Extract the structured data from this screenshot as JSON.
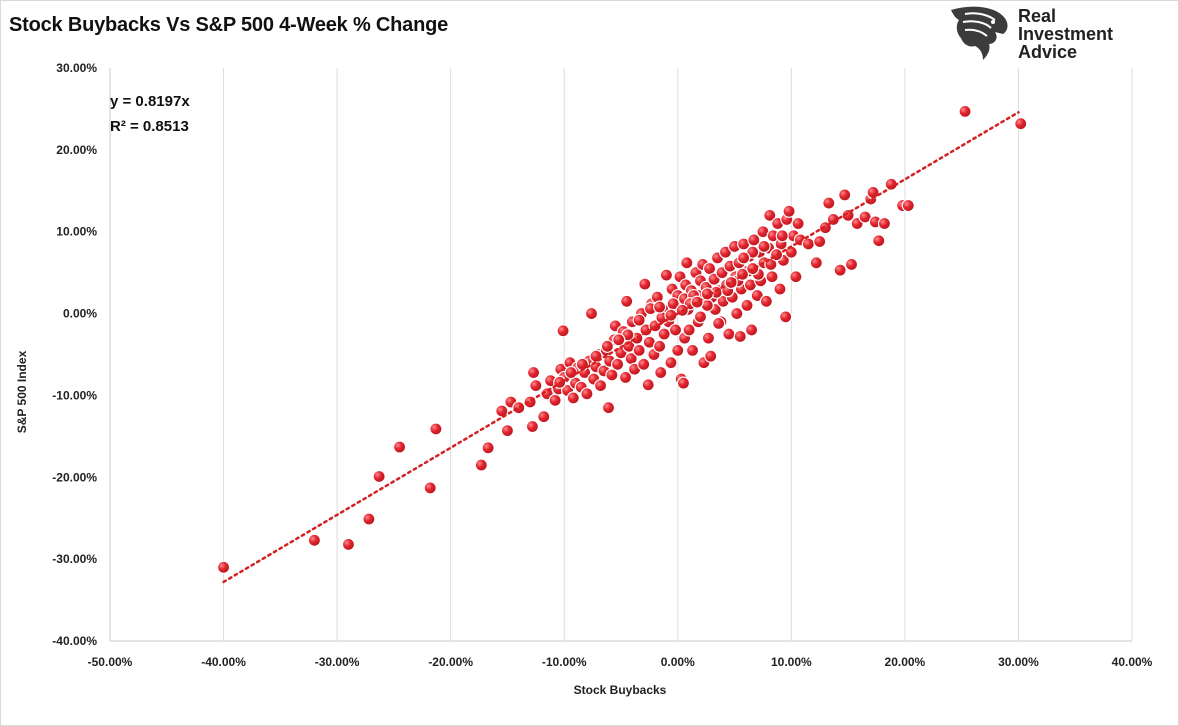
{
  "chart_data": {
    "type": "scatter",
    "title": "Stock Buybacks Vs S&P 500 4-Week % Change",
    "xlabel": "Stock Buybacks",
    "ylabel": "S&P 500 Index",
    "xlim": [
      -0.5,
      0.4
    ],
    "ylim": [
      -0.4,
      0.3
    ],
    "x_ticks": [
      -0.5,
      -0.4,
      -0.3,
      -0.2,
      -0.1,
      0,
      0.1,
      0.2,
      0.3,
      0.4
    ],
    "x_tick_labels": [
      "-50.00%",
      "-40.00%",
      "-30.00%",
      "-20.00%",
      "-10.00%",
      "0.00%",
      "10.00%",
      "20.00%",
      "30.00%",
      "40.00%"
    ],
    "y_ticks": [
      0.3,
      0.2,
      0.1,
      0,
      -0.1,
      -0.2,
      -0.3,
      -0.4
    ],
    "y_tick_labels": [
      "30.00%",
      "20.00%",
      "10.00%",
      "0.00%",
      "-10.00%",
      "-20.00%",
      "-30.00%",
      "-40.00%"
    ],
    "grid": "vertical",
    "marker_color": "#e0202c",
    "trendline": {
      "type": "linear-through-origin",
      "slope": 0.8197,
      "x_range": [
        -0.4,
        0.3
      ],
      "color": "#d42020",
      "style": "dotted"
    },
    "annotations": [
      "y = 0.8197x",
      "R² = 0.8513"
    ],
    "series": [
      {
        "points": [
          [
            -0.4,
            -0.31
          ],
          [
            -0.32,
            -0.277
          ],
          [
            -0.29,
            -0.282
          ],
          [
            -0.272,
            -0.251
          ],
          [
            -0.263,
            -0.199
          ],
          [
            -0.245,
            -0.163
          ],
          [
            -0.218,
            -0.213
          ],
          [
            -0.213,
            -0.141
          ],
          [
            -0.173,
            -0.185
          ],
          [
            -0.167,
            -0.164
          ],
          [
            -0.155,
            -0.119
          ],
          [
            -0.15,
            -0.143
          ],
          [
            -0.147,
            -0.108
          ],
          [
            -0.14,
            -0.115
          ],
          [
            -0.13,
            -0.108
          ],
          [
            -0.128,
            -0.138
          ],
          [
            -0.127,
            -0.072
          ],
          [
            -0.125,
            -0.088
          ],
          [
            -0.118,
            -0.126
          ],
          [
            -0.115,
            -0.098
          ],
          [
            -0.112,
            -0.082
          ],
          [
            -0.108,
            -0.106
          ],
          [
            -0.105,
            -0.092
          ],
          [
            -0.103,
            -0.068
          ],
          [
            -0.1,
            -0.078
          ],
          [
            -0.101,
            -0.021
          ],
          [
            -0.097,
            -0.094
          ],
          [
            -0.095,
            -0.06
          ],
          [
            -0.092,
            -0.103
          ],
          [
            -0.09,
            -0.085
          ],
          [
            -0.088,
            -0.066
          ],
          [
            -0.085,
            -0.09
          ],
          [
            -0.082,
            -0.072
          ],
          [
            -0.08,
            -0.098
          ],
          [
            -0.078,
            -0.058
          ],
          [
            -0.076,
            0.0
          ],
          [
            -0.074,
            -0.08
          ],
          [
            -0.072,
            -0.065
          ],
          [
            -0.07,
            -0.05
          ],
          [
            -0.068,
            -0.088
          ],
          [
            -0.065,
            -0.07
          ],
          [
            -0.063,
            -0.045
          ],
          [
            -0.061,
            -0.115
          ],
          [
            -0.06,
            -0.058
          ],
          [
            -0.058,
            -0.075
          ],
          [
            -0.056,
            -0.032
          ],
          [
            -0.055,
            -0.015
          ],
          [
            -0.053,
            -0.062
          ],
          [
            -0.05,
            -0.048
          ],
          [
            -0.048,
            -0.022
          ],
          [
            -0.046,
            -0.078
          ],
          [
            -0.045,
            0.015
          ],
          [
            -0.043,
            -0.04
          ],
          [
            -0.041,
            -0.055
          ],
          [
            -0.04,
            -0.01
          ],
          [
            -0.038,
            -0.068
          ],
          [
            -0.036,
            -0.03
          ],
          [
            -0.034,
            -0.045
          ],
          [
            -0.032,
            0.0
          ],
          [
            -0.03,
            -0.062
          ],
          [
            -0.029,
            0.036
          ],
          [
            -0.028,
            -0.02
          ],
          [
            -0.026,
            -0.087
          ],
          [
            -0.025,
            -0.035
          ],
          [
            -0.023,
            0.012
          ],
          [
            -0.021,
            -0.05
          ],
          [
            -0.02,
            -0.015
          ],
          [
            -0.018,
            0.02
          ],
          [
            -0.016,
            -0.04
          ],
          [
            -0.015,
            -0.072
          ],
          [
            -0.013,
            0.005
          ],
          [
            -0.012,
            -0.025
          ],
          [
            -0.01,
            0.047
          ],
          [
            -0.008,
            -0.01
          ],
          [
            -0.006,
            -0.06
          ],
          [
            -0.005,
            0.03
          ],
          [
            -0.003,
            0.008
          ],
          [
            -0.002,
            -0.02
          ],
          [
            0.0,
            -0.045
          ],
          [
            0.0,
            0.022
          ],
          [
            0.002,
            0.045
          ],
          [
            0.003,
            -0.08
          ],
          [
            0.004,
            0.01
          ],
          [
            0.005,
            -0.085
          ],
          [
            0.006,
            -0.03
          ],
          [
            0.007,
            0.035
          ],
          [
            0.008,
            0.062
          ],
          [
            0.009,
            0.005
          ],
          [
            0.01,
            -0.02
          ],
          [
            0.012,
            0.028
          ],
          [
            0.013,
            -0.045
          ],
          [
            0.015,
            0.015
          ],
          [
            0.016,
            0.05
          ],
          [
            0.018,
            -0.01
          ],
          [
            0.019,
            0.022
          ],
          [
            0.02,
            0.04
          ],
          [
            0.022,
            0.06
          ],
          [
            0.023,
            -0.06
          ],
          [
            0.024,
            0.012
          ],
          [
            0.025,
            0.032
          ],
          [
            0.027,
            -0.03
          ],
          [
            0.028,
            0.055
          ],
          [
            0.029,
            -0.052
          ],
          [
            0.03,
            0.02
          ],
          [
            0.032,
            0.042
          ],
          [
            0.033,
            0.005
          ],
          [
            0.035,
            0.068
          ],
          [
            0.036,
            0.028
          ],
          [
            0.038,
            -0.01
          ],
          [
            0.039,
            0.05
          ],
          [
            0.04,
            0.015
          ],
          [
            0.042,
            0.075
          ],
          [
            0.043,
            0.035
          ],
          [
            0.045,
            -0.025
          ],
          [
            0.046,
            0.058
          ],
          [
            0.048,
            0.02
          ],
          [
            0.05,
            0.082
          ],
          [
            0.051,
            0.045
          ],
          [
            0.052,
            0.0
          ],
          [
            0.054,
            0.062
          ],
          [
            0.055,
            -0.028
          ],
          [
            0.056,
            0.03
          ],
          [
            0.058,
            0.085
          ],
          [
            0.06,
            0.05
          ],
          [
            0.061,
            0.01
          ],
          [
            0.063,
            0.07
          ],
          [
            0.064,
            0.035
          ],
          [
            0.065,
            -0.02
          ],
          [
            0.067,
            0.09
          ],
          [
            0.068,
            0.055
          ],
          [
            0.07,
            0.022
          ],
          [
            0.072,
            0.075
          ],
          [
            0.073,
            0.04
          ],
          [
            0.075,
            0.1
          ],
          [
            0.076,
            0.062
          ],
          [
            0.078,
            0.015
          ],
          [
            0.08,
            0.08
          ],
          [
            0.081,
            0.12
          ],
          [
            0.083,
            0.045
          ],
          [
            0.084,
            0.095
          ],
          [
            0.086,
            0.07
          ],
          [
            0.088,
            0.11
          ],
          [
            0.09,
            0.03
          ],
          [
            0.091,
            0.085
          ],
          [
            0.093,
            0.065
          ],
          [
            0.095,
            -0.004
          ],
          [
            0.096,
            0.115
          ],
          [
            0.098,
            0.125
          ],
          [
            0.1,
            0.075
          ],
          [
            0.102,
            0.095
          ],
          [
            0.104,
            0.045
          ],
          [
            0.106,
            0.11
          ],
          [
            0.108,
            0.09
          ],
          [
            0.115,
            0.085
          ],
          [
            0.122,
            0.062
          ],
          [
            0.125,
            0.088
          ],
          [
            0.13,
            0.105
          ],
          [
            0.133,
            0.135
          ],
          [
            0.137,
            0.115
          ],
          [
            0.143,
            0.053
          ],
          [
            0.147,
            0.145
          ],
          [
            0.15,
            0.12
          ],
          [
            0.153,
            0.06
          ],
          [
            0.158,
            0.11
          ],
          [
            0.165,
            0.118
          ],
          [
            0.17,
            0.14
          ],
          [
            0.172,
            0.148
          ],
          [
            0.174,
            0.112
          ],
          [
            0.177,
            0.089
          ],
          [
            0.182,
            0.11
          ],
          [
            0.188,
            0.158
          ],
          [
            0.198,
            0.132
          ],
          [
            0.203,
            0.132
          ],
          [
            0.253,
            0.247
          ],
          [
            0.302,
            0.232
          ],
          [
            -0.034,
            -0.008
          ],
          [
            -0.024,
            0.006
          ],
          [
            -0.014,
            -0.005
          ],
          [
            -0.004,
            0.012
          ],
          [
            0.006,
            0.018
          ],
          [
            0.014,
            0.022
          ],
          [
            0.026,
            0.01
          ],
          [
            0.034,
            0.026
          ],
          [
            0.044,
            0.028
          ],
          [
            0.053,
            0.04
          ],
          [
            0.062,
            0.052
          ],
          [
            0.071,
            0.048
          ],
          [
            0.082,
            0.06
          ],
          [
            0.036,
            -0.012
          ],
          [
            0.02,
            -0.004
          ],
          [
            0.011,
            0.012
          ],
          [
            -0.044,
            -0.026
          ],
          [
            -0.052,
            -0.032
          ],
          [
            -0.062,
            -0.04
          ],
          [
            -0.072,
            -0.052
          ],
          [
            -0.084,
            -0.062
          ],
          [
            -0.094,
            -0.072
          ],
          [
            -0.104,
            -0.084
          ],
          [
            -0.016,
            0.008
          ],
          [
            -0.006,
            -0.002
          ],
          [
            0.004,
            0.004
          ],
          [
            0.017,
            0.014
          ],
          [
            0.026,
            0.024
          ],
          [
            0.047,
            0.038
          ],
          [
            0.057,
            0.048
          ],
          [
            0.066,
            0.055
          ],
          [
            0.087,
            0.072
          ],
          [
            0.076,
            0.082
          ],
          [
            0.066,
            0.075
          ],
          [
            0.092,
            0.095
          ],
          [
            0.058,
            0.068
          ]
        ]
      }
    ]
  }
}
